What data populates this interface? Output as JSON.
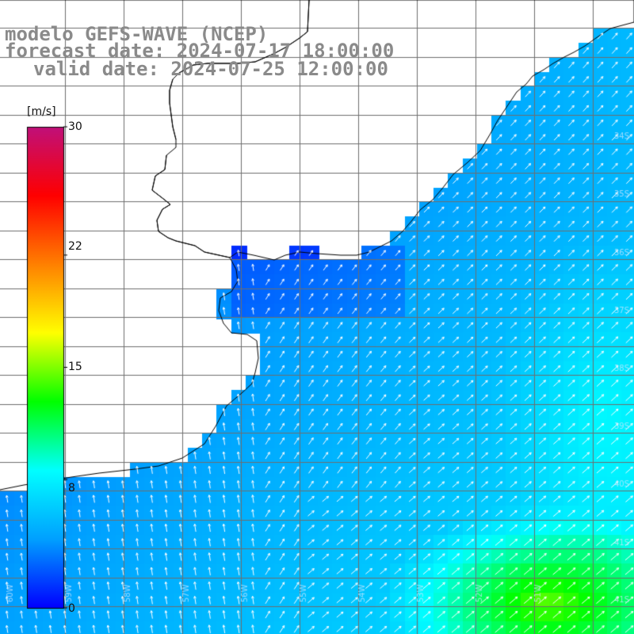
{
  "title": {
    "line1": "modelo GEFS-WAVE (NCEP)",
    "line2": "forecast date: 2024-07-17 18:00:00",
    "line3": "valid date: 2024-07-25 12:00:00"
  },
  "colorbar": {
    "unit_label": "[m/s]",
    "range": [
      0,
      30
    ],
    "ticks": [
      {
        "label": "30",
        "value": 30
      },
      {
        "label": "22",
        "value": 22
      },
      {
        "label": "15",
        "value": 15
      },
      {
        "label": "8",
        "value": 8
      },
      {
        "label": "0",
        "value": 0
      }
    ],
    "colors": [
      "#0000ff",
      "#00a0ff",
      "#00ffff",
      "#00ff00",
      "#ffff00",
      "#ff8000",
      "#ff0000",
      "#c0107a"
    ]
  },
  "map": {
    "land_color": "#ffffff",
    "coast_color": "#000000",
    "grid_color": "#6e6e6e",
    "arrow_color": "#ffffff",
    "grid_labels_lat": [
      "34S",
      "35S",
      "36S",
      "37S",
      "38S",
      "39S",
      "40S",
      "41S"
    ],
    "grid_labels_lon": [
      "60W",
      "59W",
      "58W",
      "57W",
      "56W",
      "55W",
      "54W",
      "53W",
      "52W",
      "51W"
    ]
  }
}
